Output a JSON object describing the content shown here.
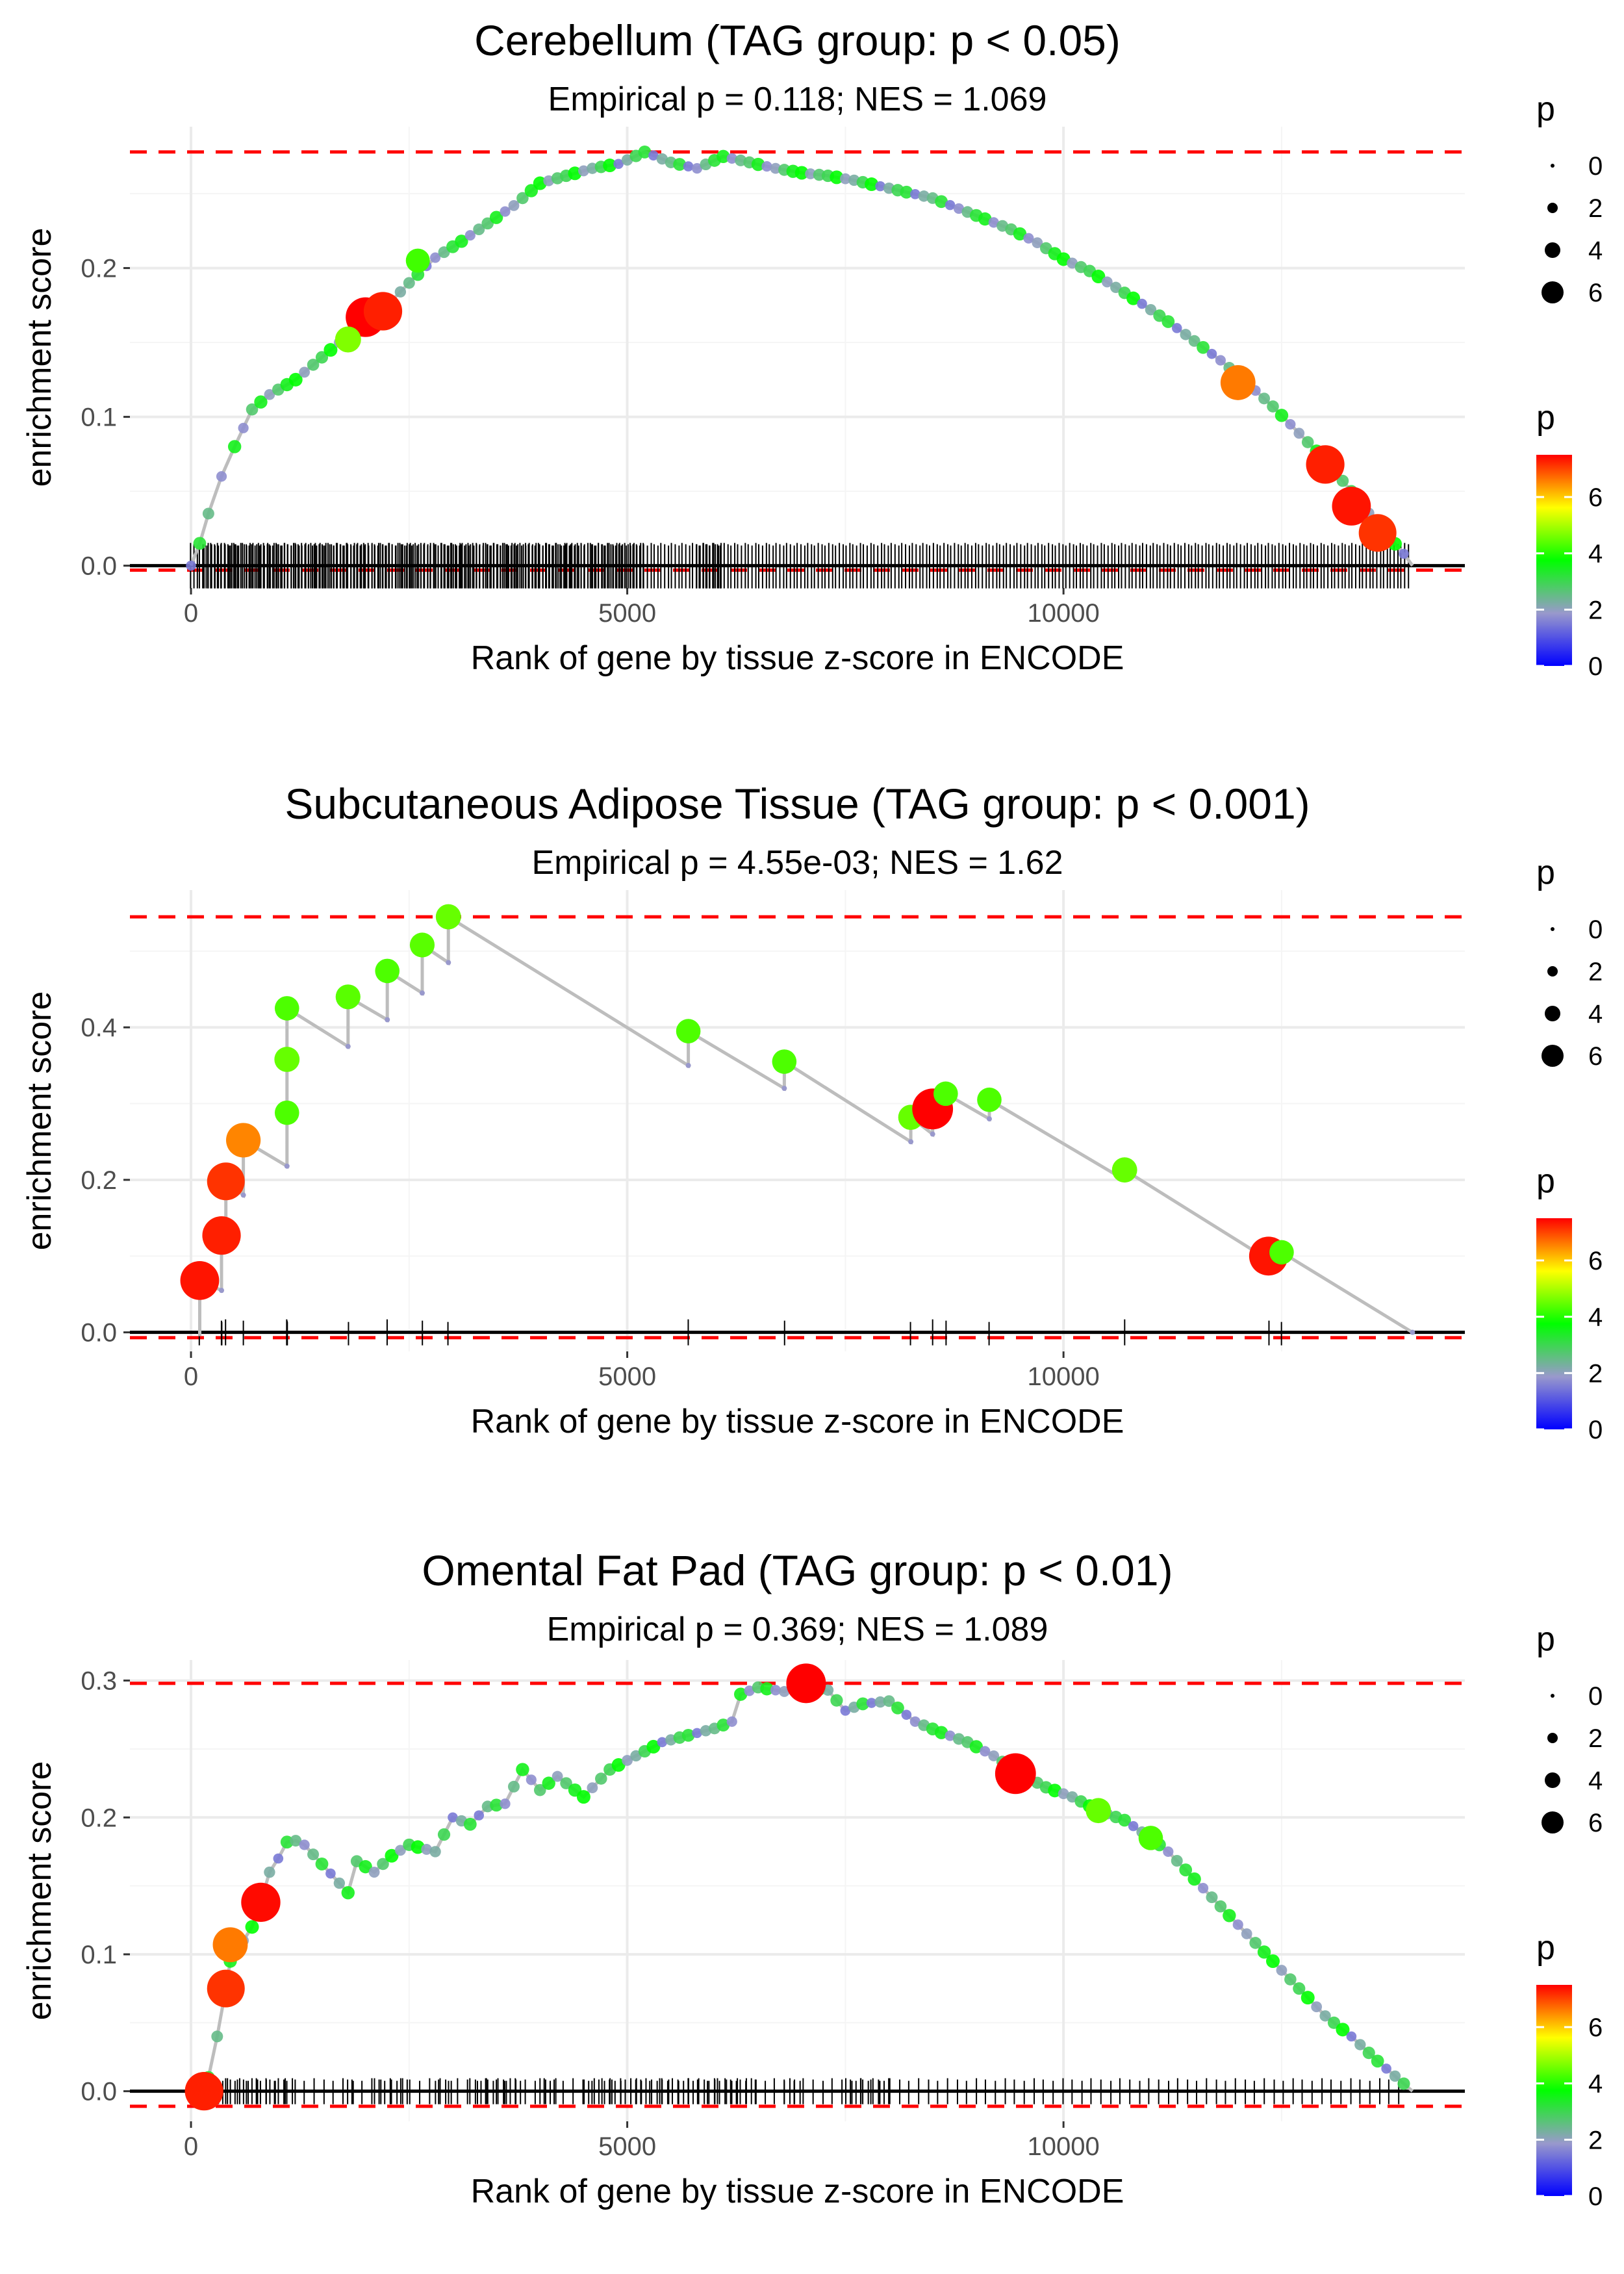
{
  "chart_data": [
    {
      "type": "line",
      "title": "Cerebellum (TAG group: p < 0.05)",
      "subtitle": "Empirical p = 0.118; NES = 1.069",
      "xlabel": "Rank of gene by tissue z-score in ENCODE",
      "ylabel": "enrichment score",
      "xlim": [
        -700,
        14600
      ],
      "ylim": [
        -0.015,
        0.295
      ],
      "xticks": [
        0,
        5000,
        10000
      ],
      "xtick_labels": [
        "0",
        "5000",
        "10000"
      ],
      "yticks": [
        0,
        0.1,
        0.2
      ],
      "ytick_labels": [
        "0.0",
        "0.1",
        "0.2"
      ],
      "max_es": 0.278,
      "min_es": -0.003,
      "n_genes": 14000,
      "series": [
        {
          "name": "running enrichment score",
          "x": [
            0,
            100,
            200,
            350,
            500,
            700,
            900,
            1200,
            1500,
            1800,
            2000,
            2200,
            2500,
            2800,
            3100,
            3400,
            3700,
            4000,
            4300,
            4600,
            4900,
            5200,
            5500,
            5800,
            6100,
            6400,
            6700,
            7000,
            7300,
            7600,
            7900,
            8200,
            8500,
            8800,
            9100,
            9400,
            9700,
            10000,
            10300,
            10600,
            10900,
            11200,
            11500,
            11800,
            12100,
            12400,
            12700,
            13000,
            13300,
            13600,
            13900,
            14000
          ],
          "y": [
            0.0,
            0.015,
            0.035,
            0.06,
            0.08,
            0.105,
            0.115,
            0.125,
            0.14,
            0.155,
            0.165,
            0.172,
            0.19,
            0.207,
            0.218,
            0.23,
            0.242,
            0.257,
            0.262,
            0.267,
            0.27,
            0.278,
            0.271,
            0.267,
            0.275,
            0.271,
            0.267,
            0.264,
            0.262,
            0.259,
            0.255,
            0.251,
            0.247,
            0.24,
            0.233,
            0.226,
            0.217,
            0.206,
            0.198,
            0.187,
            0.176,
            0.164,
            0.151,
            0.138,
            0.123,
            0.107,
            0.089,
            0.071,
            0.05,
            0.028,
            0.008,
            0.0
          ]
        }
      ],
      "highlights": [
        {
          "x": 2000,
          "y": 0.167,
          "p": 7.5
        },
        {
          "x": 2200,
          "y": 0.171,
          "p": 7.2
        },
        {
          "x": 1800,
          "y": 0.152,
          "p": 4.0
        },
        {
          "x": 2600,
          "y": 0.205,
          "p": 3.5
        },
        {
          "x": 12000,
          "y": 0.123,
          "p": 6.3
        },
        {
          "x": 13000,
          "y": 0.068,
          "p": 7.2
        },
        {
          "x": 13300,
          "y": 0.04,
          "p": 7.3
        },
        {
          "x": 13600,
          "y": 0.022,
          "p": 7.0
        }
      ],
      "legend_size": {
        "title": "p",
        "labels": [
          "0",
          "2",
          "4",
          "6"
        ]
      },
      "legend_color": {
        "title": "p",
        "labels": [
          "6",
          "4",
          "2",
          "0"
        ],
        "colors": [
          "#0000ff",
          "#9999cc",
          "#00ff00",
          "#ffff00",
          "#ff0000"
        ]
      }
    },
    {
      "type": "line",
      "title": "Subcutaneous Adipose Tissue (TAG group: p < 0.001)",
      "subtitle": "Empirical p = 4.55e-03; NES = 1.62",
      "xlabel": "Rank of gene by tissue z-score in ENCODE",
      "ylabel": "enrichment score",
      "xlim": [
        -700,
        14600
      ],
      "ylim": [
        -0.025,
        0.58
      ],
      "xticks": [
        0,
        5000,
        10000
      ],
      "xtick_labels": [
        "0",
        "5000",
        "10000"
      ],
      "yticks": [
        0,
        0.2,
        0.4
      ],
      "ytick_labels": [
        "0.0",
        "0.2",
        "0.4"
      ],
      "max_es": 0.545,
      "min_es": -0.007,
      "n_genes": 14000,
      "series": [
        {
          "name": "running enrichment score",
          "x": [
            100,
            100,
            350,
            350,
            400,
            400,
            600,
            600,
            1100,
            1100,
            1100,
            1100,
            1800,
            1800,
            2250,
            2250,
            2650,
            2650,
            2950,
            2950,
            5700,
            5700,
            6800,
            6800,
            8250,
            8250,
            8500,
            8500,
            8650,
            8650,
            9150,
            9150,
            10700,
            10700,
            12350,
            12350,
            12500,
            12500,
            14000
          ],
          "y": [
            -0.005,
            0.068,
            0.055,
            0.127,
            0.13,
            0.198,
            0.18,
            0.252,
            0.218,
            0.288,
            0.358,
            0.425,
            0.375,
            0.44,
            0.41,
            0.474,
            0.445,
            0.508,
            0.485,
            0.545,
            0.35,
            0.395,
            0.32,
            0.355,
            0.25,
            0.282,
            0.26,
            0.293,
            0.28,
            0.313,
            0.28,
            0.305,
            0.2,
            0.213,
            0.095,
            0.1,
            0.09,
            0.105,
            0.0
          ]
        }
      ],
      "highlights": [
        {
          "x": 100,
          "y": 0.068,
          "p": 7.3
        },
        {
          "x": 350,
          "y": 0.127,
          "p": 7.2
        },
        {
          "x": 400,
          "y": 0.198,
          "p": 7.0
        },
        {
          "x": 600,
          "y": 0.252,
          "p": 6.2
        },
        {
          "x": 1100,
          "y": 0.288,
          "p": 3.6
        },
        {
          "x": 1100,
          "y": 0.358,
          "p": 3.8
        },
        {
          "x": 1100,
          "y": 0.425,
          "p": 3.6
        },
        {
          "x": 1800,
          "y": 0.44,
          "p": 3.7
        },
        {
          "x": 2250,
          "y": 0.474,
          "p": 3.6
        },
        {
          "x": 2650,
          "y": 0.508,
          "p": 3.7
        },
        {
          "x": 2950,
          "y": 0.545,
          "p": 3.8
        },
        {
          "x": 5700,
          "y": 0.395,
          "p": 3.6
        },
        {
          "x": 6800,
          "y": 0.355,
          "p": 3.6
        },
        {
          "x": 8250,
          "y": 0.282,
          "p": 3.8
        },
        {
          "x": 8500,
          "y": 0.293,
          "p": 7.8
        },
        {
          "x": 8650,
          "y": 0.313,
          "p": 3.6
        },
        {
          "x": 9150,
          "y": 0.305,
          "p": 3.6
        },
        {
          "x": 10700,
          "y": 0.213,
          "p": 3.8
        },
        {
          "x": 12350,
          "y": 0.1,
          "p": 7.3
        },
        {
          "x": 12500,
          "y": 0.105,
          "p": 3.6
        }
      ],
      "legend_size": {
        "title": "p",
        "labels": [
          "0",
          "2",
          "4",
          "6"
        ]
      },
      "legend_color": {
        "title": "p",
        "labels": [
          "6",
          "4",
          "2",
          "0"
        ],
        "colors": [
          "#0000ff",
          "#9999cc",
          "#00ff00",
          "#ffff00",
          "#ff0000"
        ]
      }
    },
    {
      "type": "line",
      "title": "Omental Fat Pad (TAG group: p < 0.01)",
      "subtitle": "Empirical p = 0.369; NES = 1.089",
      "xlabel": "Rank of gene by tissue z-score in ENCODE",
      "ylabel": "enrichment score",
      "xlim": [
        -700,
        14600
      ],
      "ylim": [
        -0.022,
        0.315
      ],
      "xticks": [
        0,
        5000,
        10000
      ],
      "xtick_labels": [
        "0",
        "5000",
        "10000"
      ],
      "yticks": [
        0,
        0.1,
        0.2,
        0.3
      ],
      "ytick_labels": [
        "0.0",
        "0.1",
        "0.2",
        "0.3"
      ],
      "max_es": 0.298,
      "min_es": -0.011,
      "n_genes": 14000,
      "series": [
        {
          "name": "running enrichment score",
          "x": [
            100,
            200,
            300,
            400,
            450,
            500,
            600,
            700,
            800,
            900,
            1000,
            1100,
            1200,
            1300,
            1800,
            1900,
            2100,
            2300,
            2500,
            2800,
            3000,
            3200,
            3400,
            3600,
            3800,
            4000,
            4200,
            4500,
            4800,
            5100,
            5400,
            5700,
            6000,
            6200,
            6300,
            6500,
            6800,
            7000,
            7100,
            7300,
            7500,
            7700,
            8000,
            8300,
            8600,
            8900,
            9200,
            9500,
            9800,
            10100,
            10400,
            10700,
            11000,
            11200,
            11500,
            11800,
            12100,
            12400,
            12700,
            13000,
            13300,
            13600,
            14000
          ],
          "y": [
            0.0,
            0.01,
            0.04,
            0.075,
            0.095,
            0.107,
            0.11,
            0.12,
            0.138,
            0.16,
            0.17,
            0.182,
            0.183,
            0.18,
            0.145,
            0.168,
            0.16,
            0.172,
            0.18,
            0.175,
            0.2,
            0.195,
            0.208,
            0.21,
            0.235,
            0.22,
            0.23,
            0.215,
            0.235,
            0.245,
            0.255,
            0.26,
            0.265,
            0.27,
            0.29,
            0.295,
            0.292,
            0.298,
            0.295,
            0.293,
            0.278,
            0.283,
            0.285,
            0.27,
            0.262,
            0.255,
            0.245,
            0.232,
            0.222,
            0.215,
            0.205,
            0.198,
            0.185,
            0.175,
            0.155,
            0.135,
            0.115,
            0.095,
            0.075,
            0.055,
            0.04,
            0.022,
            0.0
          ]
        }
      ],
      "highlights": [
        {
          "x": 150,
          "y": 0.0,
          "p": 7.2
        },
        {
          "x": 400,
          "y": 0.075,
          "p": 7.0
        },
        {
          "x": 450,
          "y": 0.107,
          "p": 6.3
        },
        {
          "x": 800,
          "y": 0.138,
          "p": 7.4
        },
        {
          "x": 7050,
          "y": 0.298,
          "p": 7.5
        },
        {
          "x": 9450,
          "y": 0.232,
          "p": 7.8
        },
        {
          "x": 10400,
          "y": 0.205,
          "p": 3.8
        },
        {
          "x": 11000,
          "y": 0.185,
          "p": 3.6
        }
      ],
      "legend_size": {
        "title": "p",
        "labels": [
          "0",
          "2",
          "4",
          "6"
        ]
      },
      "legend_color": {
        "title": "p",
        "labels": [
          "6",
          "4",
          "2",
          "0"
        ],
        "colors": [
          "#0000ff",
          "#9999cc",
          "#00ff00",
          "#ffff00",
          "#ff0000"
        ]
      }
    }
  ]
}
